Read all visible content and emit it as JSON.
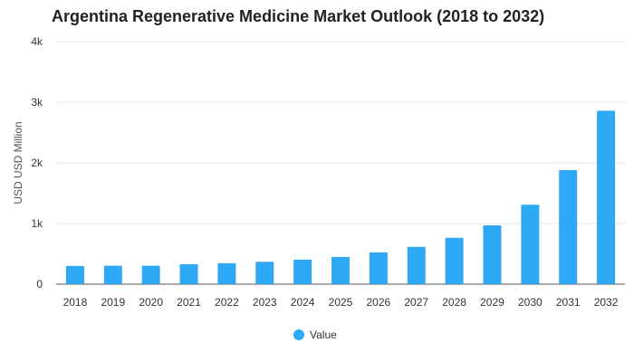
{
  "chart_data": {
    "type": "bar",
    "title": "Argentina Regenerative Medicine Market Outlook (2018 to 2032)",
    "xlabel": "",
    "ylabel": "USD USD Million",
    "ylim": [
      0,
      4000
    ],
    "y_ticks": [
      0,
      1000,
      2000,
      3000,
      4000
    ],
    "y_tick_labels": [
      "0",
      "1k",
      "2k",
      "3k",
      "4k"
    ],
    "grid": true,
    "legend": {
      "position": "bottom-center",
      "entries": [
        "Value"
      ]
    },
    "categories": [
      "2018",
      "2019",
      "2020",
      "2021",
      "2022",
      "2023",
      "2024",
      "2025",
      "2026",
      "2027",
      "2028",
      "2029",
      "2030",
      "2031",
      "2032"
    ],
    "series": [
      {
        "name": "Value",
        "color": "#2ea9f5",
        "values": [
          300,
          305,
          305,
          330,
          345,
          370,
          405,
          450,
          525,
          615,
          765,
          970,
          1310,
          1880,
          2860
        ]
      }
    ]
  }
}
